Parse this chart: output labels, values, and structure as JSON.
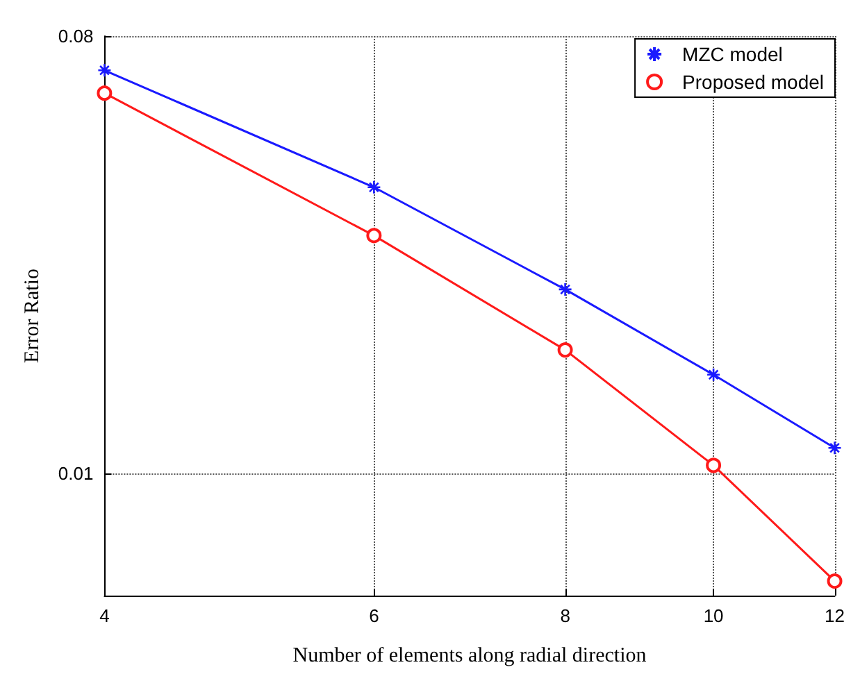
{
  "chart_data": {
    "type": "line",
    "xlabel": "Number of elements along radial direction",
    "ylabel": "Error Ratio",
    "log": "xy",
    "x": [
      4,
      6,
      8,
      10,
      12
    ],
    "series": [
      {
        "name": "MZC model",
        "color": "#1a1aff",
        "marker": "cross",
        "values": [
          0.068,
          0.039,
          0.024,
          0.016,
          0.0113
        ]
      },
      {
        "name": "Proposed model",
        "color": "#ff1a1a",
        "marker": "circle",
        "values": [
          0.061,
          0.031,
          0.018,
          0.0104,
          0.006
        ]
      }
    ],
    "xlim": [
      4,
      12
    ],
    "xticks": [
      4,
      6,
      8,
      10,
      12
    ],
    "ylim": [
      0.0056,
      0.08
    ],
    "yticks": [
      0.01,
      0.08
    ],
    "grid": true,
    "legend": "top right",
    "line_style": "solid"
  }
}
